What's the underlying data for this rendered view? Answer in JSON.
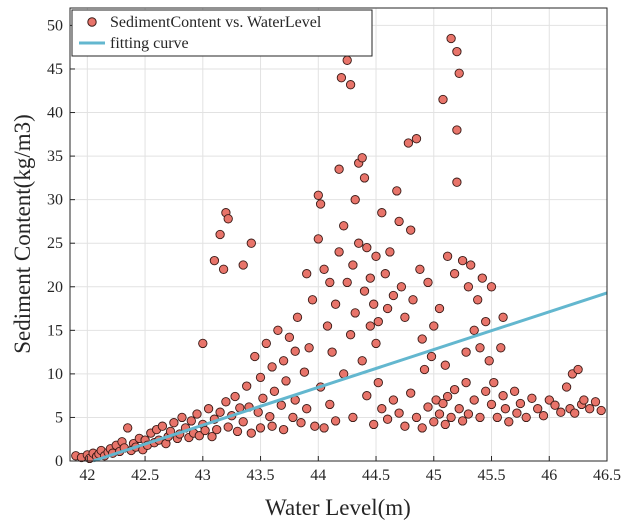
{
  "chart_data": {
    "type": "scatter",
    "xlabel": "Water Level(m)",
    "ylabel": "Sediment Content(kg/m3)",
    "xlim": [
      41.85,
      46.5
    ],
    "ylim": [
      0,
      52
    ],
    "xticks": [
      42,
      42.5,
      43,
      43.5,
      44,
      44.5,
      45,
      45.5,
      46,
      46.5
    ],
    "xtick_labels": [
      "42",
      "42.5",
      "43",
      "43.5",
      "44",
      "44.5",
      "45",
      "45.5",
      "46",
      "46.5"
    ],
    "yticks": [
      0,
      5,
      10,
      15,
      20,
      25,
      30,
      35,
      40,
      45,
      50
    ],
    "ytick_labels": [
      "0",
      "5",
      "10",
      "15",
      "20",
      "25",
      "30",
      "35",
      "40",
      "45",
      "50"
    ],
    "grid": true,
    "legend_position": "top-left",
    "series": [
      {
        "name": "SedimentContent vs. WaterLevel",
        "kind": "scatter",
        "color": "#E8746A",
        "edge_color": "#3A1A16",
        "points": [
          [
            41.9,
            0.6
          ],
          [
            41.95,
            0.4
          ],
          [
            42.0,
            0.7
          ],
          [
            42.02,
            0.3
          ],
          [
            42.05,
            0.9
          ],
          [
            42.08,
            0.5
          ],
          [
            42.1,
            0.8
          ],
          [
            42.12,
            1.2
          ],
          [
            42.15,
            0.6
          ],
          [
            42.18,
            1.0
          ],
          [
            42.2,
            1.4
          ],
          [
            42.22,
            0.9
          ],
          [
            42.25,
            1.8
          ],
          [
            42.28,
            1.1
          ],
          [
            42.3,
            2.2
          ],
          [
            42.32,
            1.5
          ],
          [
            42.35,
            3.8
          ],
          [
            42.38,
            1.2
          ],
          [
            42.4,
            2.0
          ],
          [
            42.42,
            1.6
          ],
          [
            42.45,
            2.6
          ],
          [
            42.48,
            1.3
          ],
          [
            42.5,
            2.4
          ],
          [
            42.52,
            1.8
          ],
          [
            42.55,
            3.2
          ],
          [
            42.58,
            2.1
          ],
          [
            42.6,
            3.6
          ],
          [
            42.62,
            2.4
          ],
          [
            42.65,
            4.0
          ],
          [
            42.68,
            2.0
          ],
          [
            42.7,
            2.8
          ],
          [
            42.72,
            3.4
          ],
          [
            42.75,
            4.4
          ],
          [
            42.78,
            2.6
          ],
          [
            42.8,
            3.1
          ],
          [
            42.82,
            5.0
          ],
          [
            42.85,
            3.8
          ],
          [
            42.88,
            2.7
          ],
          [
            42.9,
            4.6
          ],
          [
            42.92,
            3.2
          ],
          [
            42.95,
            5.4
          ],
          [
            42.97,
            2.9
          ],
          [
            43.0,
            4.2
          ],
          [
            43.0,
            13.5
          ],
          [
            43.02,
            3.5
          ],
          [
            43.05,
            6.0
          ],
          [
            43.08,
            2.8
          ],
          [
            43.1,
            23.0
          ],
          [
            43.1,
            4.8
          ],
          [
            43.12,
            3.6
          ],
          [
            43.15,
            26.0
          ],
          [
            43.15,
            5.6
          ],
          [
            43.18,
            22.0
          ],
          [
            43.2,
            28.5
          ],
          [
            43.2,
            6.8
          ],
          [
            43.22,
            27.8
          ],
          [
            43.22,
            3.9
          ],
          [
            43.25,
            5.2
          ],
          [
            43.28,
            7.4
          ],
          [
            43.3,
            3.4
          ],
          [
            43.32,
            6.1
          ],
          [
            43.35,
            22.5
          ],
          [
            43.35,
            4.5
          ],
          [
            43.38,
            8.6
          ],
          [
            43.4,
            6.2
          ],
          [
            43.42,
            25.0
          ],
          [
            43.42,
            3.2
          ],
          [
            43.45,
            12.0
          ],
          [
            43.48,
            5.6
          ],
          [
            43.5,
            9.6
          ],
          [
            43.5,
            3.8
          ],
          [
            43.52,
            7.2
          ],
          [
            43.55,
            13.5
          ],
          [
            43.58,
            5.1
          ],
          [
            43.6,
            10.8
          ],
          [
            43.6,
            4.0
          ],
          [
            43.62,
            8.0
          ],
          [
            43.65,
            15.0
          ],
          [
            43.68,
            6.4
          ],
          [
            43.7,
            11.5
          ],
          [
            43.7,
            3.6
          ],
          [
            43.72,
            9.2
          ],
          [
            43.75,
            14.2
          ],
          [
            43.78,
            5.0
          ],
          [
            43.8,
            12.6
          ],
          [
            43.8,
            7.0
          ],
          [
            43.82,
            16.5
          ],
          [
            43.85,
            4.4
          ],
          [
            43.88,
            10.2
          ],
          [
            43.9,
            21.5
          ],
          [
            43.9,
            6.0
          ],
          [
            43.92,
            13.0
          ],
          [
            43.95,
            18.5
          ],
          [
            43.97,
            4.0
          ],
          [
            44.0,
            30.5
          ],
          [
            44.0,
            25.5
          ],
          [
            44.02,
            29.5
          ],
          [
            44.02,
            8.5
          ],
          [
            44.05,
            22.0
          ],
          [
            44.05,
            3.8
          ],
          [
            44.08,
            15.5
          ],
          [
            44.1,
            20.5
          ],
          [
            44.1,
            6.5
          ],
          [
            44.12,
            12.5
          ],
          [
            44.15,
            18.0
          ],
          [
            44.15,
            4.6
          ],
          [
            44.18,
            33.5
          ],
          [
            44.18,
            24.0
          ],
          [
            44.2,
            47.0
          ],
          [
            44.2,
            44.0
          ],
          [
            44.22,
            27.0
          ],
          [
            44.22,
            10.0
          ],
          [
            44.25,
            46.0
          ],
          [
            44.25,
            20.5
          ],
          [
            44.28,
            43.2
          ],
          [
            44.28,
            14.5
          ],
          [
            44.3,
            22.5
          ],
          [
            44.3,
            5.0
          ],
          [
            44.32,
            30.0
          ],
          [
            44.32,
            17.0
          ],
          [
            44.35,
            34.2
          ],
          [
            44.35,
            25.0
          ],
          [
            44.38,
            34.8
          ],
          [
            44.38,
            11.5
          ],
          [
            44.4,
            32.5
          ],
          [
            44.4,
            19.5
          ],
          [
            44.42,
            24.5
          ],
          [
            44.42,
            7.5
          ],
          [
            44.45,
            21.0
          ],
          [
            44.45,
            15.5
          ],
          [
            44.48,
            18.0
          ],
          [
            44.48,
            4.2
          ],
          [
            44.5,
            23.5
          ],
          [
            44.5,
            13.5
          ],
          [
            44.52,
            16.0
          ],
          [
            44.52,
            9.0
          ],
          [
            44.55,
            28.5
          ],
          [
            44.55,
            6.0
          ],
          [
            44.58,
            21.5
          ],
          [
            44.6,
            17.5
          ],
          [
            44.6,
            4.8
          ],
          [
            44.62,
            24.0
          ],
          [
            44.65,
            19.0
          ],
          [
            44.65,
            7.0
          ],
          [
            44.68,
            31.0
          ],
          [
            44.7,
            27.5
          ],
          [
            44.7,
            5.5
          ],
          [
            44.72,
            20.0
          ],
          [
            44.75,
            16.5
          ],
          [
            44.75,
            4.0
          ],
          [
            44.78,
            36.5
          ],
          [
            44.8,
            26.5
          ],
          [
            44.8,
            7.8
          ],
          [
            44.82,
            18.5
          ],
          [
            44.85,
            37.0
          ],
          [
            44.85,
            5.0
          ],
          [
            44.88,
            22.0
          ],
          [
            44.9,
            14.0
          ],
          [
            44.9,
            3.8
          ],
          [
            44.92,
            10.5
          ],
          [
            44.95,
            20.5
          ],
          [
            44.95,
            6.2
          ],
          [
            44.98,
            12.0
          ],
          [
            45.0,
            15.5
          ],
          [
            45.0,
            4.5
          ],
          [
            45.02,
            7.0
          ],
          [
            45.05,
            17.5
          ],
          [
            45.05,
            5.4
          ],
          [
            45.08,
            41.5
          ],
          [
            45.08,
            6.6
          ],
          [
            45.1,
            11.0
          ],
          [
            45.1,
            4.2
          ],
          [
            45.12,
            23.5
          ],
          [
            45.12,
            7.4
          ],
          [
            45.15,
            48.5
          ],
          [
            45.15,
            5.0
          ],
          [
            45.18,
            21.5
          ],
          [
            45.18,
            8.2
          ],
          [
            45.2,
            47.0
          ],
          [
            45.2,
            38.0
          ],
          [
            45.2,
            32.0
          ],
          [
            45.22,
            44.5
          ],
          [
            45.22,
            6.0
          ],
          [
            45.25,
            23.0
          ],
          [
            45.25,
            4.6
          ],
          [
            45.28,
            12.5
          ],
          [
            45.28,
            9.0
          ],
          [
            45.3,
            20.0
          ],
          [
            45.3,
            5.4
          ],
          [
            45.32,
            22.5
          ],
          [
            45.35,
            15.0
          ],
          [
            45.35,
            7.0
          ],
          [
            45.38,
            18.5
          ],
          [
            45.4,
            13.0
          ],
          [
            45.4,
            5.0
          ],
          [
            45.42,
            21.0
          ],
          [
            45.45,
            16.0
          ],
          [
            45.45,
            8.0
          ],
          [
            45.48,
            11.5
          ],
          [
            45.5,
            6.5
          ],
          [
            45.5,
            20.0
          ],
          [
            45.52,
            9.0
          ],
          [
            45.55,
            5.0
          ],
          [
            45.58,
            13.0
          ],
          [
            45.6,
            16.5
          ],
          [
            45.6,
            7.5
          ],
          [
            45.62,
            6.0
          ],
          [
            45.65,
            4.5
          ],
          [
            45.7,
            8.0
          ],
          [
            45.72,
            5.5
          ],
          [
            45.75,
            6.6
          ],
          [
            45.8,
            5.0
          ],
          [
            45.85,
            7.2
          ],
          [
            45.9,
            6.0
          ],
          [
            45.95,
            5.2
          ],
          [
            46.0,
            7.0
          ],
          [
            46.05,
            6.4
          ],
          [
            46.1,
            5.6
          ],
          [
            46.15,
            8.5
          ],
          [
            46.18,
            6.0
          ],
          [
            46.2,
            10.0
          ],
          [
            46.22,
            5.5
          ],
          [
            46.25,
            10.5
          ],
          [
            46.28,
            6.5
          ],
          [
            46.3,
            7.0
          ],
          [
            46.35,
            6.0
          ],
          [
            46.4,
            6.8
          ],
          [
            46.45,
            5.8
          ]
        ]
      },
      {
        "name": "fitting curve",
        "kind": "line",
        "color": "#63B7CF",
        "x": [
          42.05,
          46.5
        ],
        "y": [
          0,
          19.3
        ]
      }
    ]
  }
}
